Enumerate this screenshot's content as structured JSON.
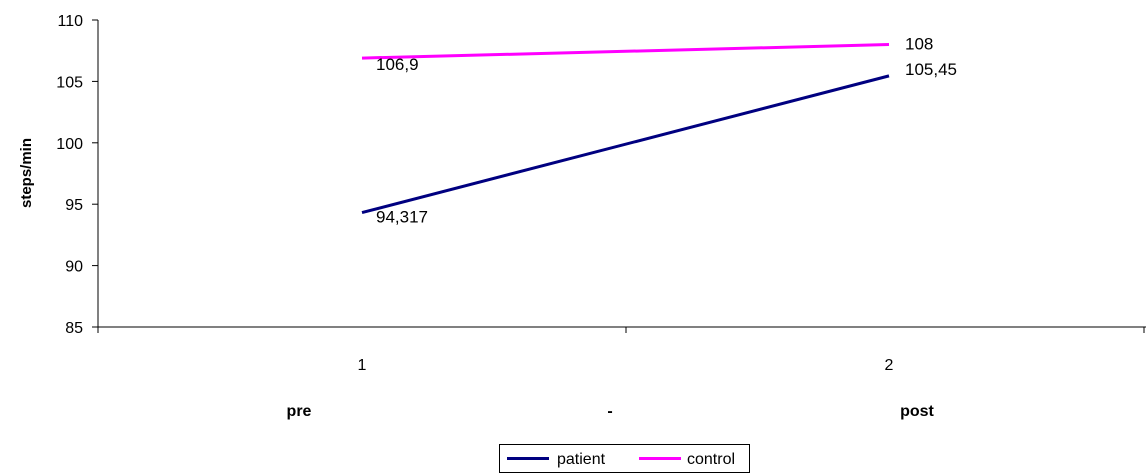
{
  "chart_data": {
    "type": "line",
    "ylabel": "steps/min",
    "ylim": [
      85,
      110
    ],
    "y_ticks": [
      "85",
      "90",
      "95",
      "100",
      "105",
      "110"
    ],
    "x": [
      "1",
      "2"
    ],
    "category_labels": [
      "pre",
      "-",
      "post"
    ],
    "series": [
      {
        "name": "patient",
        "color": "#000080",
        "values": [
          94.317,
          105.45
        ],
        "labels": [
          "94,317",
          "105,45"
        ]
      },
      {
        "name": "control",
        "color": "#FF00FF",
        "values": [
          106.9,
          108
        ],
        "labels": [
          "106,9",
          "108"
        ]
      }
    ],
    "grid": false,
    "legend_position": "bottom"
  }
}
